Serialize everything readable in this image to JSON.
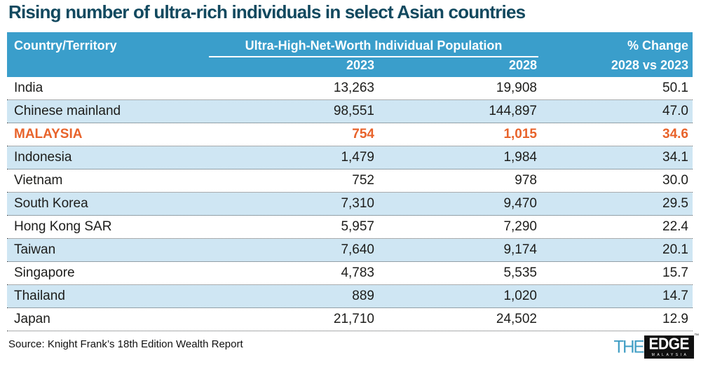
{
  "title": "Rising number of ultra-rich individuals in select Asian countries",
  "table": {
    "header": {
      "country_label": "Country/Territory",
      "population_group_label": "Ultra-High-Net-Worth Individual Population",
      "year_2023": "2023",
      "year_2028": "2028",
      "change_line1": "% Change",
      "change_line2": "2028 vs 2023"
    },
    "rows": [
      {
        "country": "India",
        "v2023": "13,263",
        "v2028": "19,908",
        "change": "50.1",
        "highlight": false
      },
      {
        "country": "Chinese mainland",
        "v2023": "98,551",
        "v2028": "144,897",
        "change": "47.0",
        "highlight": false
      },
      {
        "country": "MALAYSIA",
        "v2023": "754",
        "v2028": "1,015",
        "change": "34.6",
        "highlight": true
      },
      {
        "country": "Indonesia",
        "v2023": "1,479",
        "v2028": "1,984",
        "change": "34.1",
        "highlight": false
      },
      {
        "country": "Vietnam",
        "v2023": "752",
        "v2028": "978",
        "change": "30.0",
        "highlight": false
      },
      {
        "country": "South Korea",
        "v2023": "7,310",
        "v2028": "9,470",
        "change": "29.5",
        "highlight": false
      },
      {
        "country": "Hong Kong SAR",
        "v2023": "5,957",
        "v2028": "7,290",
        "change": "22.4",
        "highlight": false
      },
      {
        "country": "Taiwan",
        "v2023": "7,640",
        "v2028": "9,174",
        "change": "20.1",
        "highlight": false
      },
      {
        "country": "Singapore",
        "v2023": "4,783",
        "v2028": "5,535",
        "change": "15.7",
        "highlight": false
      },
      {
        "country": "Thailand",
        "v2023": "889",
        "v2028": "1,020",
        "change": "14.7",
        "highlight": false
      },
      {
        "country": "Japan",
        "v2023": "21,710",
        "v2028": "24,502",
        "change": "12.9",
        "highlight": false
      }
    ]
  },
  "chart_data": {
    "type": "table",
    "title": "Rising number of ultra-rich individuals in select Asian countries",
    "column_group": "Ultra-High-Net-Worth Individual Population",
    "columns": [
      "Country/Territory",
      "2023",
      "2028",
      "% Change 2028 vs 2023"
    ],
    "rows": [
      {
        "country": "India",
        "uhnwi_2023": 13263,
        "uhnwi_2028": 19908,
        "pct_change": 50.1
      },
      {
        "country": "Chinese mainland",
        "uhnwi_2023": 98551,
        "uhnwi_2028": 144897,
        "pct_change": 47.0
      },
      {
        "country": "MALAYSIA",
        "uhnwi_2023": 754,
        "uhnwi_2028": 1015,
        "pct_change": 34.6
      },
      {
        "country": "Indonesia",
        "uhnwi_2023": 1479,
        "uhnwi_2028": 1984,
        "pct_change": 34.1
      },
      {
        "country": "Vietnam",
        "uhnwi_2023": 752,
        "uhnwi_2028": 978,
        "pct_change": 30.0
      },
      {
        "country": "South Korea",
        "uhnwi_2023": 7310,
        "uhnwi_2028": 9470,
        "pct_change": 29.5
      },
      {
        "country": "Hong Kong SAR",
        "uhnwi_2023": 5957,
        "uhnwi_2028": 7290,
        "pct_change": 22.4
      },
      {
        "country": "Taiwan",
        "uhnwi_2023": 7640,
        "uhnwi_2028": 9174,
        "pct_change": 20.1
      },
      {
        "country": "Singapore",
        "uhnwi_2023": 4783,
        "uhnwi_2028": 5535,
        "pct_change": 15.7
      },
      {
        "country": "Thailand",
        "uhnwi_2023": 889,
        "uhnwi_2028": 1020,
        "pct_change": 14.7
      },
      {
        "country": "Japan",
        "uhnwi_2023": 21710,
        "uhnwi_2028": 24502,
        "pct_change": 12.9
      }
    ],
    "highlighted_row": "MALAYSIA",
    "source": "Source: Knight Frank’s 18th Edition Wealth Report"
  },
  "source": "Source: Knight Frank’s 18th Edition Wealth Report",
  "logo": {
    "the": "THE",
    "edge": "EDGE",
    "tm": "™",
    "country": "MALAYSIA"
  },
  "colors": {
    "header_bg": "#3a9ecb",
    "alt_row": "#cfe6f3",
    "title": "#12495f",
    "highlight": "#e8632b",
    "text": "#1d1d1b"
  }
}
